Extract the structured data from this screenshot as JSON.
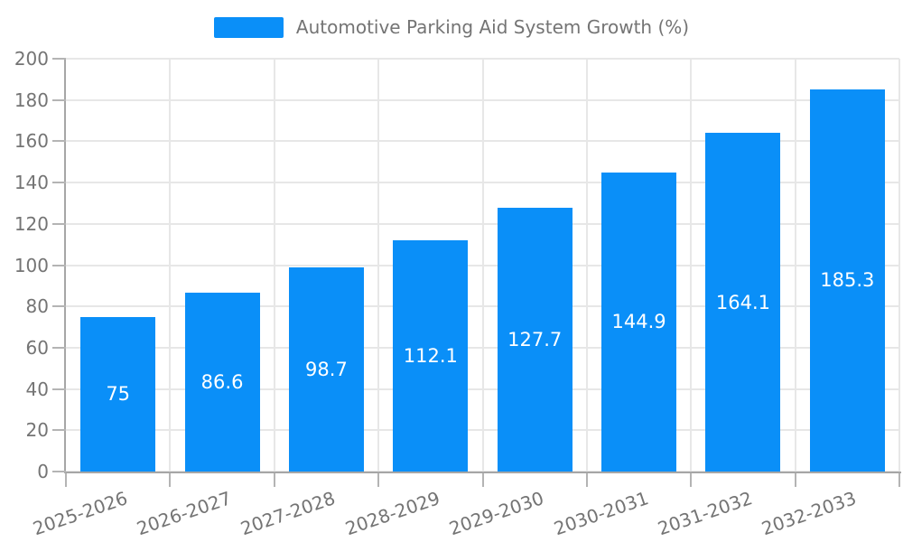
{
  "legend": {
    "label": "Automotive Parking Aid System Growth (%)"
  },
  "colors": {
    "bar": "#0A8FF8",
    "grid": "#E7E7E7",
    "axis": "#A6A6A6",
    "tick": "#B4B4B4",
    "text": "#747474",
    "bar_label": "#FFFFFF",
    "background": "#FFFFFF"
  },
  "chart_data": {
    "type": "bar",
    "title": "Automotive Parking Aid System Growth (%)",
    "categories": [
      "2025-2026",
      "2026-2027",
      "2027-2028",
      "2028-2029",
      "2029-2030",
      "2030-2031",
      "2031-2032",
      "2032-2033"
    ],
    "series": [
      {
        "name": "Automotive Parking Aid System Growth (%)",
        "values": [
          75,
          86.6,
          98.7,
          112.1,
          127.7,
          144.9,
          164.1,
          185.3
        ]
      }
    ],
    "value_labels": [
      "75",
      "86.6",
      "98.7",
      "112.1",
      "127.7",
      "144.9",
      "164.1",
      "185.3"
    ],
    "xlabel": "",
    "ylabel": "",
    "ylim": [
      0,
      200
    ],
    "ytick_step": 20,
    "grid": true,
    "legend_position": "top",
    "x_label_rotation_deg": -19
  }
}
